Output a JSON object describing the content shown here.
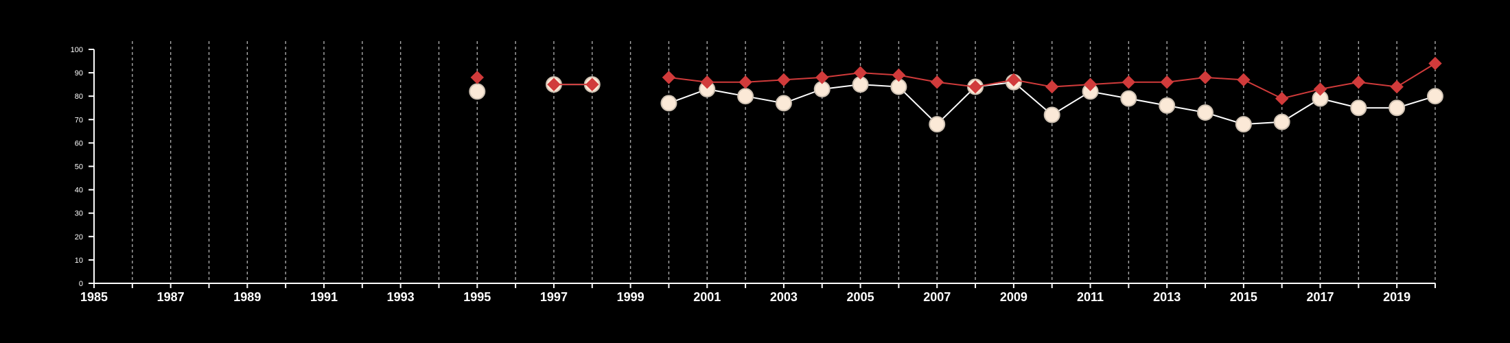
{
  "chart_data": {
    "type": "line",
    "title": "",
    "xlabel": "",
    "ylabel": "",
    "xlim": [
      1985,
      2020
    ],
    "ylim": [
      0,
      100
    ],
    "yticks": [
      0,
      10,
      20,
      30,
      40,
      50,
      60,
      70,
      80,
      90,
      100
    ],
    "xticks": [
      1985,
      1987,
      1989,
      1991,
      1993,
      1995,
      1997,
      1999,
      2001,
      2003,
      2005,
      2007,
      2009,
      2011,
      2013,
      2015,
      2017,
      2019
    ],
    "grid": "vertical-dashed-yearly",
    "colors": {
      "background": "#000000",
      "axis": "#ffffff",
      "grid": "#aaaaaa",
      "series_red": "#d13b3b",
      "series_cream": "#fbe9d7",
      "cream_marker_edge": "#cfc2b3"
    },
    "series": [
      {
        "marker": "diamond",
        "color": "#d13b3b",
        "x": [
          1995,
          1997,
          1998,
          2000,
          2001,
          2002,
          2003,
          2004,
          2005,
          2006,
          2007,
          2008,
          2009,
          2010,
          2011,
          2012,
          2013,
          2014,
          2015,
          2016,
          2017,
          2018,
          2019,
          2020
        ],
        "values": [
          88,
          85,
          85,
          88,
          86,
          86,
          87,
          88,
          90,
          89,
          86,
          84,
          87,
          84,
          85,
          86,
          86,
          88,
          87,
          79,
          83,
          86,
          84,
          94
        ]
      },
      {
        "marker": "circle",
        "color": "#fbe9d7",
        "x": [
          1995,
          1997,
          1998,
          2000,
          2001,
          2002,
          2003,
          2004,
          2005,
          2006,
          2007,
          2008,
          2009,
          2010,
          2011,
          2012,
          2013,
          2014,
          2015,
          2016,
          2017,
          2018,
          2019,
          2020
        ],
        "values": [
          82,
          85,
          85,
          77,
          83,
          80,
          77,
          83,
          85,
          84,
          68,
          84,
          86,
          72,
          82,
          79,
          76,
          73,
          68,
          69,
          79,
          75,
          75,
          80
        ]
      }
    ]
  }
}
